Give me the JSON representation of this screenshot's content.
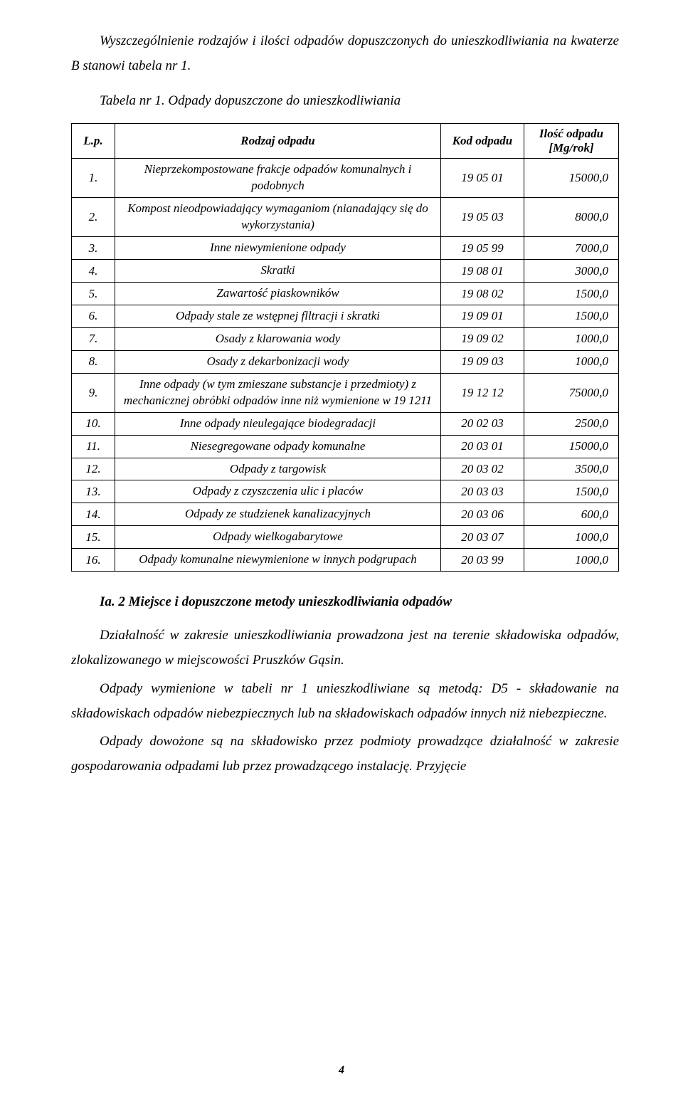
{
  "font_family": "Times New Roman",
  "colors": {
    "text": "#000000",
    "border": "#000000",
    "background": "#ffffff"
  },
  "intro": {
    "p1": "Wyszczególnienie rodzajów i ilości odpadów dopuszczonych do unieszkodliwiania na kwaterze B stanowi tabela nr 1.",
    "p2": "Tabela nr 1. Odpady dopuszczone do unieszkodliwiania"
  },
  "table": {
    "header": {
      "lp": "L.p.",
      "name": "Rodzaj odpadu",
      "code": "Kod odpadu",
      "qty": "Ilość odpadu [Mg/rok]"
    },
    "rows": [
      {
        "lp": "1.",
        "name": "Nieprzekompostowane frakcje odpadów komunalnych i podobnych",
        "code": "19 05 01",
        "qty": "15000,0"
      },
      {
        "lp": "2.",
        "name": "Kompost nieodpowiadający wymaganiom (nianadający się do wykorzystania)",
        "code": "19 05 03",
        "qty": "8000,0"
      },
      {
        "lp": "3.",
        "name": "Inne niewymienione odpady",
        "code": "19 05 99",
        "qty": "7000,0"
      },
      {
        "lp": "4.",
        "name": "Skratki",
        "code": "19 08 01",
        "qty": "3000,0"
      },
      {
        "lp": "5.",
        "name": "Zawartość piaskowników",
        "code": "19 08 02",
        "qty": "1500,0"
      },
      {
        "lp": "6.",
        "name": "Odpady stale ze wstępnej flltracji i skratki",
        "code": "19 09 01",
        "qty": "1500,0"
      },
      {
        "lp": "7.",
        "name": "Osady z klarowania wody",
        "code": "19 09 02",
        "qty": "1000,0"
      },
      {
        "lp": "8.",
        "name": "Osady z dekarbonizacji wody",
        "code": "19 09 03",
        "qty": "1000,0"
      },
      {
        "lp": "9.",
        "name": "Inne odpady (w tym zmieszane substancje i przedmioty) z mechanicznej obróbki odpadów inne niż wymienione w 19 1211",
        "code": "19 12 12",
        "qty": "75000,0"
      },
      {
        "lp": "10.",
        "name": "Inne odpady nieulegające biodegradacji",
        "code": "20 02 03",
        "qty": "2500,0"
      },
      {
        "lp": "11.",
        "name": "Niesegregowane odpady komunalne",
        "code": "20 03 01",
        "qty": "15000,0"
      },
      {
        "lp": "12.",
        "name": "Odpady z targowisk",
        "code": "20 03 02",
        "qty": "3500,0"
      },
      {
        "lp": "13.",
        "name": "Odpady z czyszczenia ulic i placów",
        "code": "20 03 03",
        "qty": "1500,0"
      },
      {
        "lp": "14.",
        "name": "Odpady ze studzienek kanalizacyjnych",
        "code": "20 03 06",
        "qty": "600,0"
      },
      {
        "lp": "15.",
        "name": "Odpady wielkogabarytowe",
        "code": "20 03 07",
        "qty": "1000,0"
      },
      {
        "lp": "16.",
        "name": "Odpady komunalne niewymienione w innych podgrupach",
        "code": "20 03 99",
        "qty": "1000,0"
      }
    ]
  },
  "section": {
    "heading": "Ia. 2 Miejsce i dopuszczone metody unieszkodliwiania odpadów",
    "p1": "Działalność w zakresie unieszkodliwiania prowadzona jest na terenie składowiska odpadów, zlokalizowanego w miejscowości Pruszków Gąsin.",
    "p2": "Odpady wymienione w tabeli nr 1 unieszkodliwiane są metodą: D5 - składowanie na składowiskach odpadów niebezpiecznych lub na składowiskach odpadów innych niż niebezpieczne.",
    "p3": "Odpady dowożone są na składowisko przez podmioty prowadzące działalność w zakresie gospodarowania odpadami lub przez prowadzącego instalację. Przyjęcie"
  },
  "page_number": "4"
}
